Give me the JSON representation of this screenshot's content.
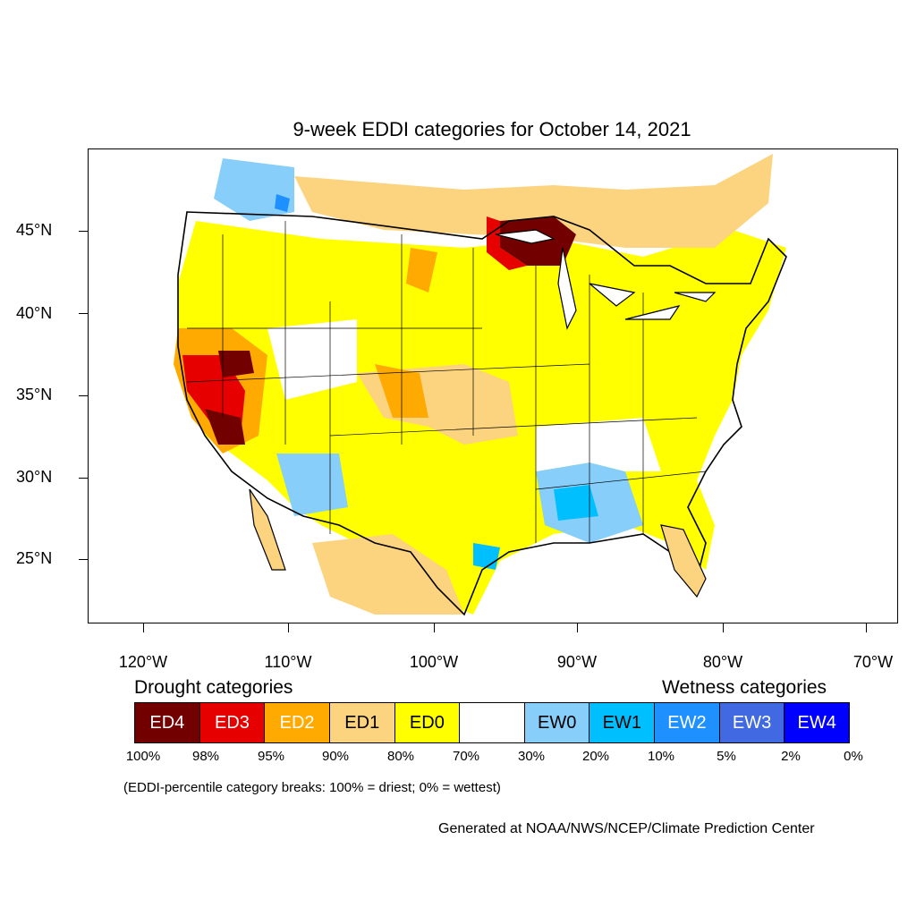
{
  "title": "9-week EDDI categories for October 14, 2021",
  "lat_labels": [
    "45°N",
    "40°N",
    "35°N",
    "30°N",
    "25°N"
  ],
  "lon_labels": [
    "120°W",
    "110°W",
    "100°W",
    "90°W",
    "80°W",
    "70°W"
  ],
  "legend": {
    "drought_heading": "Drought categories",
    "wetness_heading": "Wetness categories",
    "categories": [
      {
        "label": "ED4",
        "color": "#730000",
        "text_color": "#ffffff"
      },
      {
        "label": "ED3",
        "color": "#e60000",
        "text_color": "#ffffff"
      },
      {
        "label": "ED2",
        "color": "#ffaa00",
        "text_color": "#ffffff"
      },
      {
        "label": "ED1",
        "color": "#fcd37f",
        "text_color": "#000000"
      },
      {
        "label": "ED0",
        "color": "#ffff00",
        "text_color": "#000000"
      },
      {
        "label": "",
        "color": "#ffffff",
        "text_color": "#000000"
      },
      {
        "label": "EW0",
        "color": "#87cefa",
        "text_color": "#000000"
      },
      {
        "label": "EW1",
        "color": "#00bfff",
        "text_color": "#000000"
      },
      {
        "label": "EW2",
        "color": "#1e90ff",
        "text_color": "#ffffff"
      },
      {
        "label": "EW3",
        "color": "#4169e1",
        "text_color": "#ffffff"
      },
      {
        "label": "EW4",
        "color": "#0000ff",
        "text_color": "#ffffff"
      }
    ],
    "percentiles": [
      "100%",
      "98%",
      "95%",
      "90%",
      "80%",
      "70%",
      "30%",
      "20%",
      "10%",
      "5%",
      "2%",
      "0%"
    ]
  },
  "note": "(EDDI-percentile category breaks: 100% = driest; 0% = wettest)",
  "credit": "Generated at NOAA/NWS/NCEP/Climate Prediction Center"
}
